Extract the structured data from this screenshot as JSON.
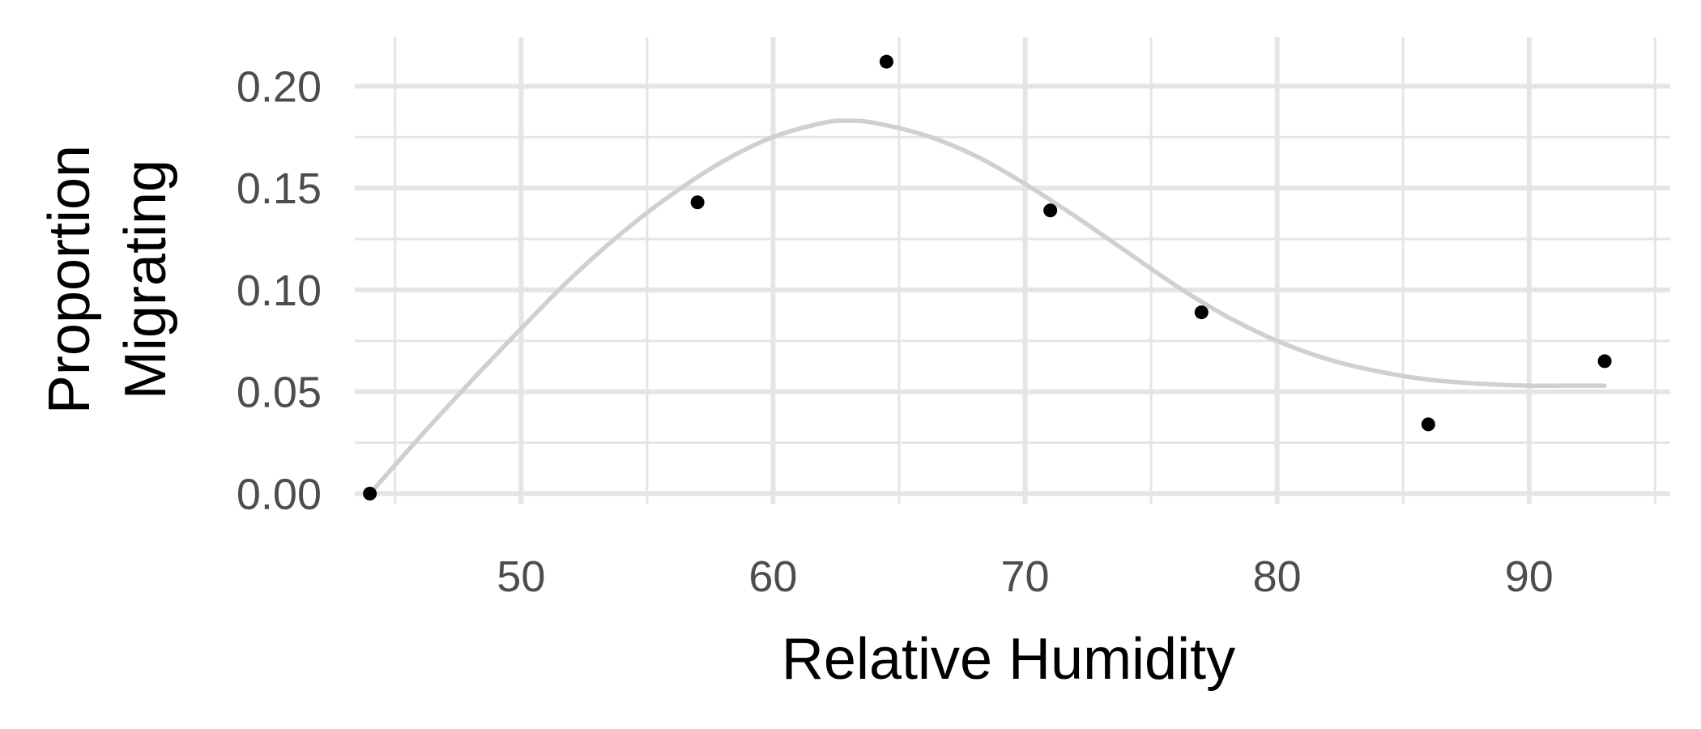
{
  "chart_data": {
    "type": "scatter",
    "title": "",
    "xlabel": "Relative Humidity",
    "ylabel": "Proportion\nMigrating",
    "xlim": [
      43.4,
      95.6
    ],
    "ylim": [
      -0.005,
      0.224
    ],
    "x_ticks": [
      50,
      60,
      70,
      80,
      90
    ],
    "x_tick_labels": [
      "50",
      "60",
      "70",
      "80",
      "90"
    ],
    "x_minor_ticks": [
      45,
      55,
      65,
      75,
      85,
      95
    ],
    "y_ticks": [
      0.0,
      0.05,
      0.1,
      0.15,
      0.2
    ],
    "y_tick_labels": [
      "0.00",
      "0.05",
      "0.10",
      "0.15",
      "0.20"
    ],
    "y_minor_ticks": [
      0.025,
      0.075,
      0.125,
      0.175
    ],
    "grid": true,
    "legend": "none",
    "points": {
      "x": [
        44.0,
        57.0,
        64.5,
        71.0,
        77.0,
        86.0,
        93.0
      ],
      "y": [
        0.0,
        0.143,
        0.212,
        0.139,
        0.089,
        0.034,
        0.065
      ]
    },
    "smooth_curve": {
      "x": [
        44,
        46,
        48,
        50,
        52,
        54,
        56,
        58,
        60,
        62,
        63,
        64,
        66,
        68,
        70,
        72,
        74,
        76,
        78,
        80,
        82,
        84,
        86,
        88,
        90,
        92,
        93
      ],
      "y": [
        0.0,
        0.028,
        0.055,
        0.081,
        0.106,
        0.128,
        0.147,
        0.163,
        0.175,
        0.182,
        0.183,
        0.182,
        0.176,
        0.166,
        0.152,
        0.136,
        0.119,
        0.102,
        0.087,
        0.075,
        0.066,
        0.06,
        0.056,
        0.054,
        0.053,
        0.053,
        0.053
      ]
    },
    "colors": {
      "point": "#000000",
      "curve": "#d0d0d0",
      "grid": "#e5e5e5",
      "tick_text": "#4d4d4d",
      "axis_title": "#000000"
    }
  }
}
